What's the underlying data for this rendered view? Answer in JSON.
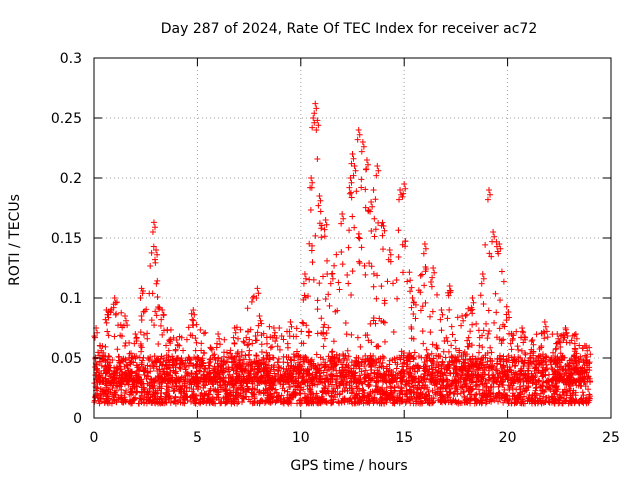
{
  "chart_data": {
    "type": "scatter",
    "title": "Day 287 of 2024, Rate Of TEC Index for receiver ac72",
    "xlabel": "GPS time / hours",
    "ylabel": "ROTI / TECUs",
    "xlim": [
      0,
      25
    ],
    "ylim": [
      0,
      0.3
    ],
    "grid": true,
    "x_ticks": [
      0,
      5,
      10,
      15,
      20,
      25
    ],
    "x_tick_labels": [
      "0",
      "5",
      "10",
      "15",
      "20",
      "25"
    ],
    "y_ticks": [
      0,
      0.05,
      0.1,
      0.15,
      0.2,
      0.25,
      0.3
    ],
    "y_tick_labels": [
      "0",
      "0.05",
      "0.1",
      "0.15",
      "0.2",
      "0.25",
      "0.3"
    ],
    "marker": "+",
    "color": "#ff0000",
    "x_range_of_data": [
      0,
      24
    ],
    "series": [
      {
        "name": "ROTI",
        "x": [
          0.1,
          0.3,
          0.6,
          1.0,
          1.5,
          2.0,
          2.3,
          2.9,
          3.0,
          3.3,
          4.0,
          4.8,
          6.0,
          6.8,
          7.9,
          8.0,
          8.7,
          9.5,
          10.2,
          10.5,
          10.6,
          10.7,
          10.8,
          10.9,
          11.2,
          11.5,
          12.0,
          12.4,
          12.5,
          12.6,
          12.8,
          13.0,
          13.2,
          13.4,
          13.7,
          14.0,
          14.3,
          14.8,
          15.0,
          15.4,
          16.0,
          16.4,
          16.8,
          17.2,
          17.8,
          18.3,
          18.8,
          19.1,
          19.3,
          19.6,
          20.2,
          20.7,
          21.2,
          21.8,
          22.4,
          22.8,
          23.3,
          23.8
        ],
        "y": [
          0.075,
          0.06,
          0.09,
          0.1,
          0.085,
          0.07,
          0.108,
          0.163,
          0.14,
          0.09,
          0.065,
          0.09,
          0.07,
          0.075,
          0.108,
          0.085,
          0.075,
          0.08,
          0.12,
          0.2,
          0.25,
          0.262,
          0.248,
          0.185,
          0.165,
          0.12,
          0.17,
          0.2,
          0.22,
          0.21,
          0.24,
          0.23,
          0.215,
          0.18,
          0.21,
          0.16,
          0.14,
          0.19,
          0.195,
          0.1,
          0.145,
          0.125,
          0.09,
          0.11,
          0.085,
          0.1,
          0.12,
          0.19,
          0.155,
          0.145,
          0.07,
          0.075,
          0.065,
          0.08,
          0.07,
          0.075,
          0.07,
          0.06
        ],
        "note": "Sparse outline of the peaks; the plot also contains a dense band of points between roughly 0.01 and 0.05 from hour 0 to 24."
      }
    ]
  }
}
